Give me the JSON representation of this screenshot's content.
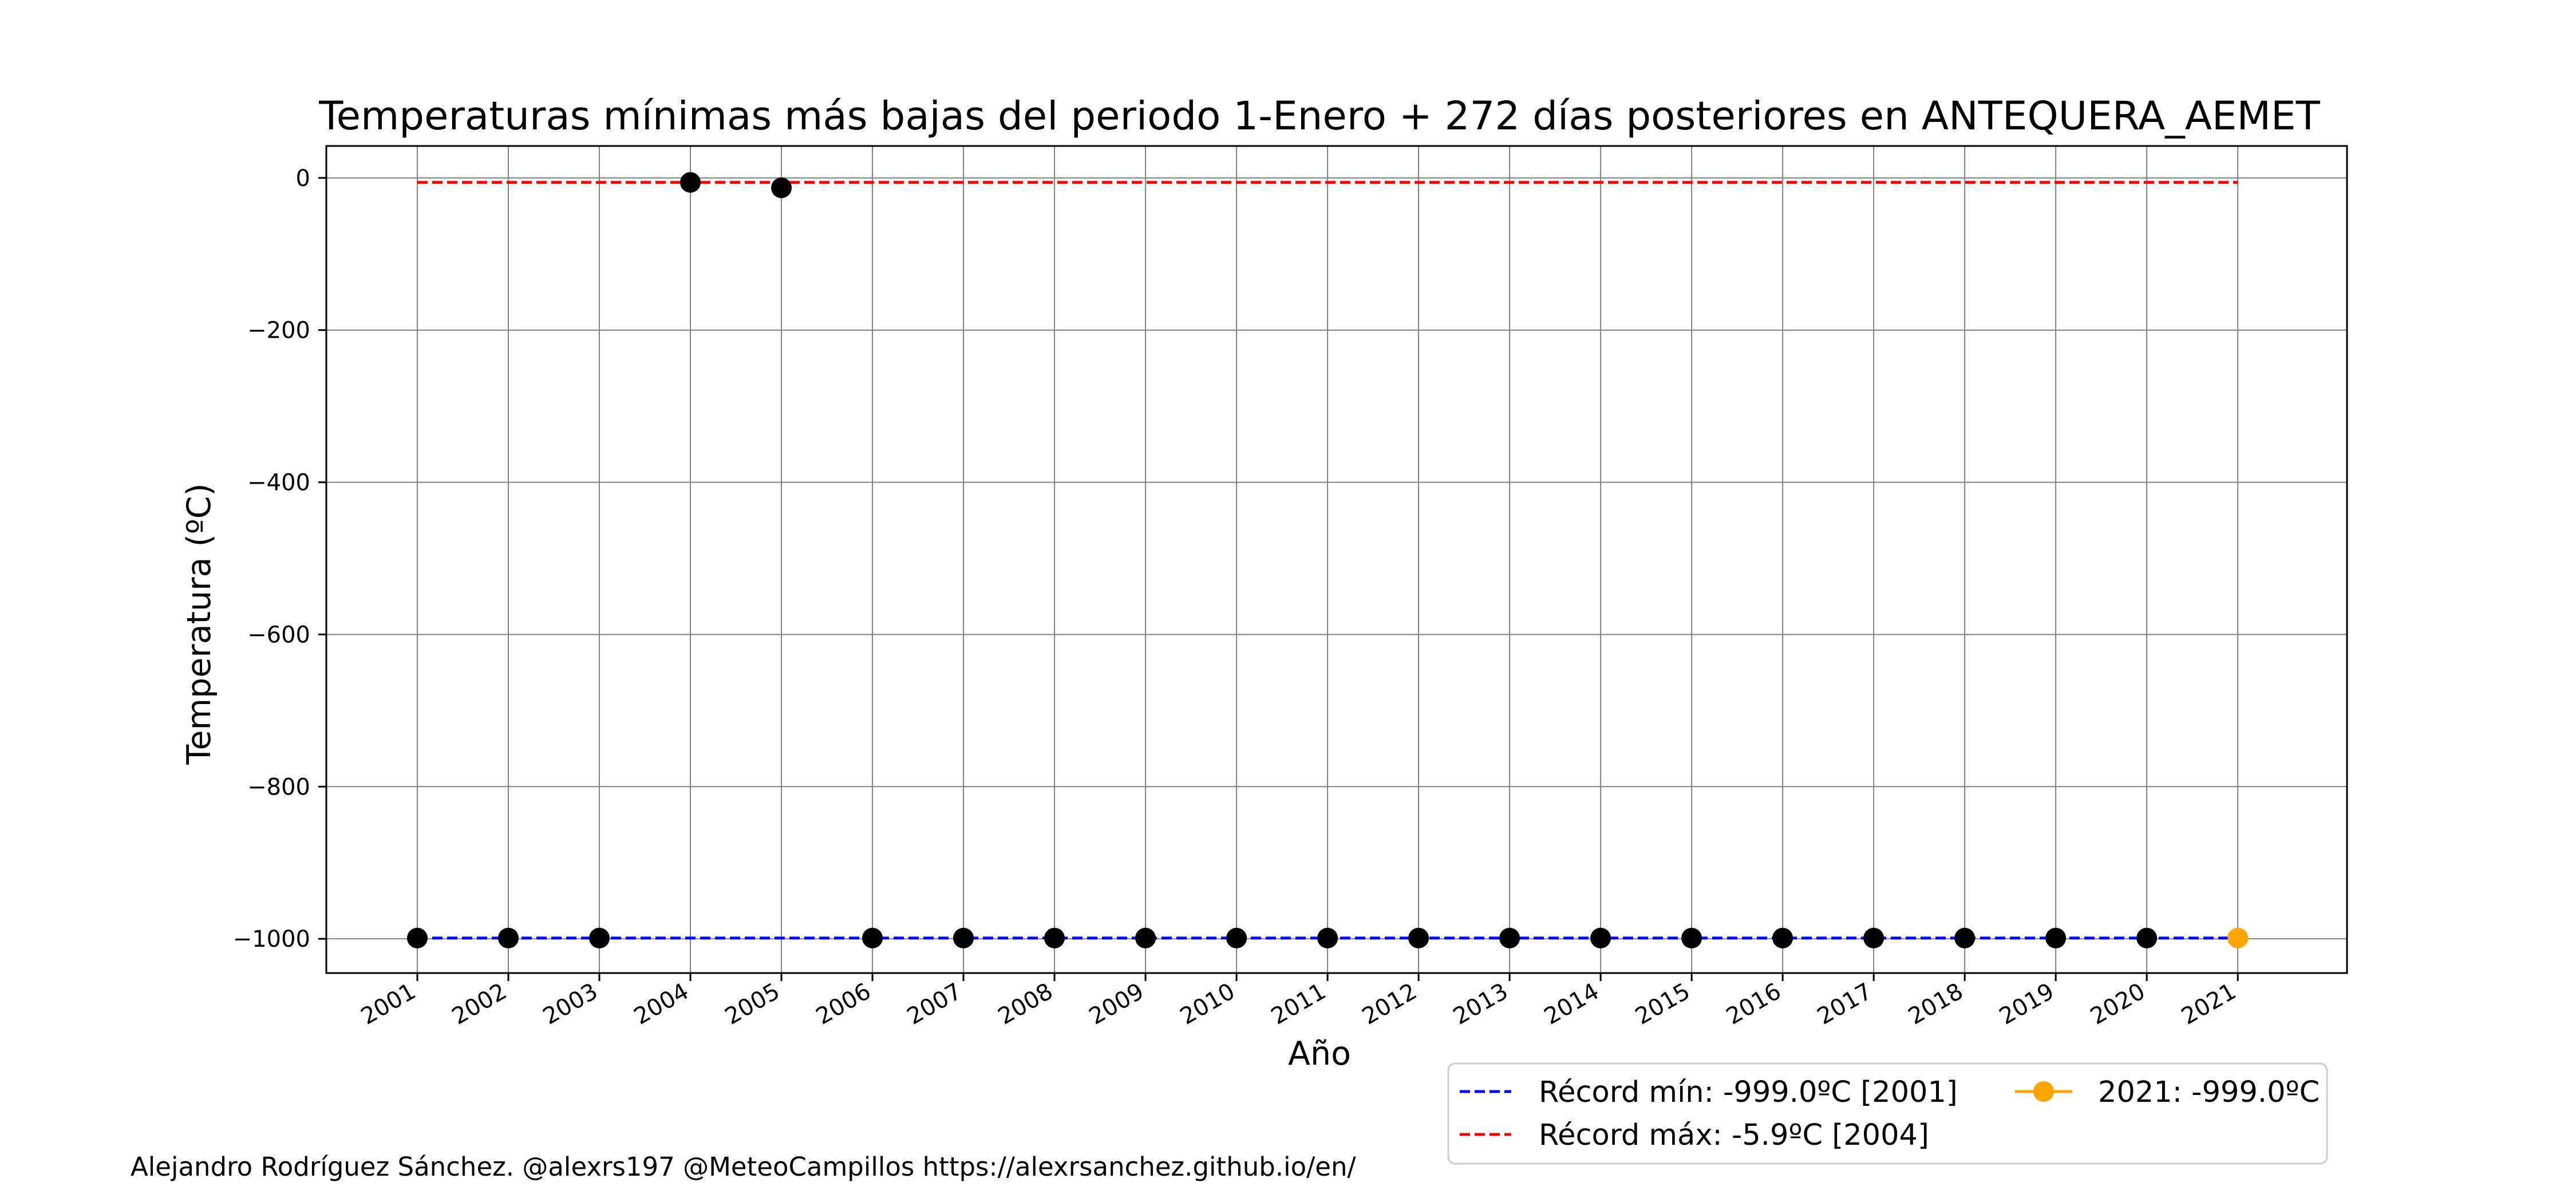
{
  "chart_data": {
    "type": "scatter",
    "title": "Temperaturas mínimas más bajas del periodo 1-Enero + 272 días posteriores en ANTEQUERA_AEMET",
    "xlabel": "Año",
    "ylabel": "Temperatura (ºC)",
    "ylim": [
      -1045,
      42
    ],
    "yticks": [
      0,
      -200,
      -400,
      -600,
      -800,
      -1000
    ],
    "ytick_labels": [
      "0",
      "−200",
      "−400",
      "−600",
      "−800",
      "−1000"
    ],
    "xlim": [
      2000,
      2022.2
    ],
    "x": [
      2001,
      2002,
      2003,
      2004,
      2005,
      2006,
      2007,
      2008,
      2009,
      2010,
      2011,
      2012,
      2013,
      2014,
      2015,
      2016,
      2017,
      2018,
      2019,
      2020,
      2021
    ],
    "xtick_labels": [
      "2001",
      "2002",
      "2003",
      "2004",
      "2005",
      "2006",
      "2007",
      "2008",
      "2009",
      "2010",
      "2011",
      "2012",
      "2013",
      "2014",
      "2015",
      "2016",
      "2017",
      "2018",
      "2019",
      "2020",
      "2021"
    ],
    "grid": true,
    "series": [
      {
        "name": "",
        "style": "markers",
        "color": "#000000",
        "x": [
          2001,
          2002,
          2003,
          2004,
          2005,
          2006,
          2007,
          2008,
          2009,
          2010,
          2011,
          2012,
          2013,
          2014,
          2015,
          2016,
          2017,
          2018,
          2019,
          2020
        ],
        "values": [
          -999.0,
          -999.0,
          -999.0,
          -5.9,
          -13.0,
          -999.0,
          -999.0,
          -999.0,
          -999.0,
          -999.0,
          -999.0,
          -999.0,
          -999.0,
          -999.0,
          -999.0,
          -999.0,
          -999.0,
          -999.0,
          -999.0,
          -999.0
        ]
      },
      {
        "name": "2021: -999.0ºC",
        "style": "marker-line",
        "color": "#ffa500",
        "x": [
          2021
        ],
        "values": [
          -999.0
        ]
      }
    ],
    "reference_lines": [
      {
        "name": "Récord mín: -999.0ºC [2001]",
        "value": -999.0,
        "color": "#0000ff",
        "dash": true
      },
      {
        "name": "Récord máx: -5.9ºC [2004]",
        "value": -5.9,
        "color": "#ff0000",
        "dash": true
      }
    ],
    "legend_placement": "bottom-right, below axes"
  },
  "footer": {
    "credit": "Alejandro Rodríguez Sánchez. @alexrs197 @MeteoCampillos   https://alexrsanchez.github.io/en/"
  }
}
